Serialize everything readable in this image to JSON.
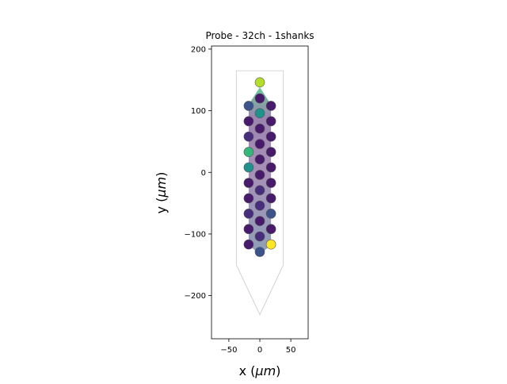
{
  "chart_data": {
    "type": "scatter",
    "title": "Probe - 32ch - 1shanks",
    "xlabel_prefix": "x (",
    "xlabel_mu": "μm",
    "xlabel_suffix": ")",
    "ylabel_prefix": "y (",
    "ylabel_mu": "μm",
    "ylabel_suffix": ")",
    "xlim": [
      -78,
      78
    ],
    "ylim": [
      -270,
      205
    ],
    "xticks": [
      -50,
      0,
      50
    ],
    "xtick_labels": [
      "−50",
      "0",
      "50"
    ],
    "yticks": [
      -200,
      -100,
      0,
      100,
      200
    ],
    "ytick_labels": [
      "−200",
      "−100",
      "0",
      "100",
      "200"
    ],
    "grid": false,
    "probe_contour": [
      [
        -38,
        165
      ],
      [
        38,
        165
      ],
      [
        38,
        -150
      ],
      [
        0,
        -231
      ],
      [
        -38,
        -150
      ]
    ],
    "activity_area": [
      [
        0,
        138
      ],
      [
        18,
        110
      ],
      [
        18,
        -118
      ],
      [
        0,
        -133
      ],
      [
        -18,
        -118
      ],
      [
        -18,
        110
      ]
    ],
    "colors": {
      "low": "#481a6c",
      "mid_low": "#472d7b",
      "mid": "#3b528b",
      "teal": "#21918c",
      "green": "#35b779",
      "lime": "#b5de2b",
      "yellow": "#fde725"
    },
    "electrodes": [
      {
        "x": 0,
        "y": 146,
        "color": "#b5de2b"
      },
      {
        "x": 0,
        "y": 120,
        "color": "#481a6c"
      },
      {
        "x": 0,
        "y": 96,
        "color": "#21918c"
      },
      {
        "x": 0,
        "y": 71,
        "color": "#481a6c"
      },
      {
        "x": 0,
        "y": 46,
        "color": "#481a6c"
      },
      {
        "x": 0,
        "y": 21,
        "color": "#481a6c"
      },
      {
        "x": 0,
        "y": -4,
        "color": "#481a6c"
      },
      {
        "x": 0,
        "y": -29,
        "color": "#472d7b"
      },
      {
        "x": 0,
        "y": -54,
        "color": "#472d7b"
      },
      {
        "x": 0,
        "y": -79,
        "color": "#481a6c"
      },
      {
        "x": 0,
        "y": -104,
        "color": "#472d7b"
      },
      {
        "x": 0,
        "y": -129,
        "color": "#3b528b"
      },
      {
        "x": -18,
        "y": 108,
        "color": "#3b528b"
      },
      {
        "x": -18,
        "y": 83,
        "color": "#481a6c"
      },
      {
        "x": -18,
        "y": 58,
        "color": "#472d7b"
      },
      {
        "x": -18,
        "y": 33,
        "color": "#35b779"
      },
      {
        "x": -18,
        "y": 8,
        "color": "#21918c"
      },
      {
        "x": -18,
        "y": -17,
        "color": "#481a6c"
      },
      {
        "x": -18,
        "y": -42,
        "color": "#481a6c"
      },
      {
        "x": -18,
        "y": -67,
        "color": "#472d7b"
      },
      {
        "x": -18,
        "y": -92,
        "color": "#481a6c"
      },
      {
        "x": -18,
        "y": -117,
        "color": "#481a6c"
      },
      {
        "x": 18,
        "y": 108,
        "color": "#481a6c"
      },
      {
        "x": 18,
        "y": 83,
        "color": "#481a6c"
      },
      {
        "x": 18,
        "y": 58,
        "color": "#481a6c"
      },
      {
        "x": 18,
        "y": 33,
        "color": "#481a6c"
      },
      {
        "x": 18,
        "y": 8,
        "color": "#481a6c"
      },
      {
        "x": 18,
        "y": -17,
        "color": "#481a6c"
      },
      {
        "x": 18,
        "y": -42,
        "color": "#481a6c"
      },
      {
        "x": 18,
        "y": -67,
        "color": "#3b528b"
      },
      {
        "x": 18,
        "y": -92,
        "color": "#481a6c"
      },
      {
        "x": 18,
        "y": -117,
        "color": "#fde725"
      }
    ]
  }
}
